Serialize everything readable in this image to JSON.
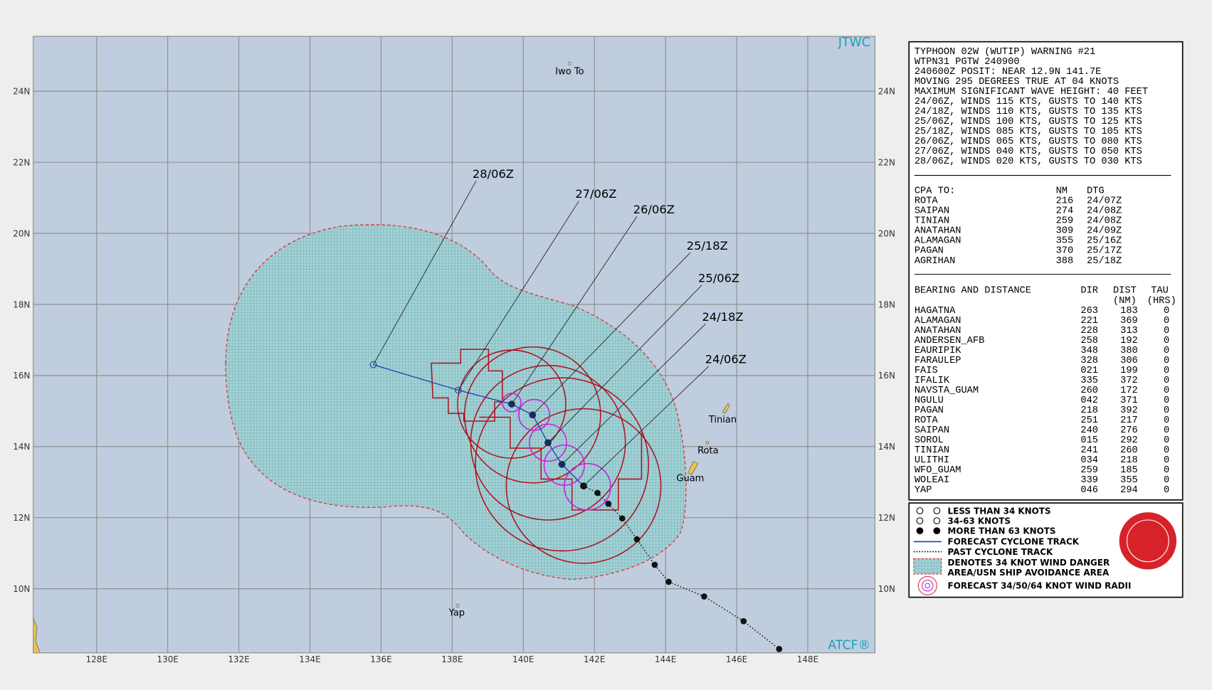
{
  "map": {
    "source_top": "JTWC",
    "source_bottom": "ATCF®",
    "lon_ticks": [
      "128E",
      "130E",
      "132E",
      "134E",
      "136E",
      "138E",
      "140E",
      "142E",
      "144E",
      "146E",
      "148E"
    ],
    "lat_ticks": [
      "24N",
      "22N",
      "20N",
      "18N",
      "16N",
      "14N",
      "12N",
      "10N"
    ],
    "places": [
      "Iwo To",
      "Tinian",
      "Rota",
      "Guam",
      "Yap"
    ],
    "forecast_labels": [
      "28/06Z",
      "27/06Z",
      "26/06Z",
      "25/18Z",
      "25/06Z",
      "24/18Z",
      "24/06Z"
    ]
  },
  "warning": {
    "lines": [
      "TYPHOON 02W (WUTIP) WARNING #21",
      "WTPN31 PGTW 240900",
      "240600Z POSIT: NEAR 12.9N 141.7E",
      "MOVING 295 DEGREES TRUE AT 04 KNOTS",
      "MAXIMUM SIGNIFICANT WAVE HEIGHT: 40 FEET",
      "24/06Z, WINDS 115 KTS, GUSTS TO 140 KTS",
      "24/18Z, WINDS 110 KTS, GUSTS TO 135 KTS",
      "25/06Z, WINDS 100 KTS, GUSTS TO 125 KTS",
      "25/18Z, WINDS 085 KTS, GUSTS TO 105 KTS",
      "26/06Z, WINDS 065 KTS, GUSTS TO 080 KTS",
      "27/06Z, WINDS 040 KTS, GUSTS TO 050 KTS",
      "28/06Z, WINDS 020 KTS, GUSTS TO 030 KTS"
    ]
  },
  "cpa": {
    "header": [
      "CPA TO:",
      "NM",
      "DTG"
    ],
    "rows": [
      [
        "ROTA",
        "216",
        "24/07Z"
      ],
      [
        "SAIPAN",
        "274",
        "24/08Z"
      ],
      [
        "TINIAN",
        "259",
        "24/08Z"
      ],
      [
        "ANATAHAN",
        "309",
        "24/09Z"
      ],
      [
        "ALAMAGAN",
        "355",
        "25/16Z"
      ],
      [
        "PAGAN",
        "370",
        "25/17Z"
      ],
      [
        "AGRIHAN",
        "388",
        "25/18Z"
      ]
    ]
  },
  "bearing": {
    "header": [
      "BEARING AND DISTANCE",
      "DIR",
      "DIST",
      "TAU"
    ],
    "subheader": [
      "(NM)",
      "(HRS)"
    ],
    "rows": [
      [
        "HAGATNA",
        "263",
        "183",
        "0"
      ],
      [
        "ALAMAGAN",
        "221",
        "369",
        "0"
      ],
      [
        "ANATAHAN",
        "228",
        "313",
        "0"
      ],
      [
        "ANDERSEN_AFB",
        "258",
        "192",
        "0"
      ],
      [
        "EAURIPIK",
        "348",
        "380",
        "0"
      ],
      [
        "FARAULEP",
        "328",
        "306",
        "0"
      ],
      [
        "FAIS",
        "021",
        "199",
        "0"
      ],
      [
        "IFALIK",
        "335",
        "372",
        "0"
      ],
      [
        "NAVSTA_GUAM",
        "260",
        "172",
        "0"
      ],
      [
        "NGULU",
        "042",
        "371",
        "0"
      ],
      [
        "PAGAN",
        "218",
        "392",
        "0"
      ],
      [
        "ROTA",
        "251",
        "217",
        "0"
      ],
      [
        "SAIPAN",
        "240",
        "276",
        "0"
      ],
      [
        "SOROL",
        "015",
        "292",
        "0"
      ],
      [
        "TINIAN",
        "241",
        "260",
        "0"
      ],
      [
        "ULITHI",
        "034",
        "218",
        "0"
      ],
      [
        "WFO_GUAM",
        "259",
        "185",
        "0"
      ],
      [
        "WOLEAI",
        "339",
        "355",
        "0"
      ],
      [
        "YAP",
        "046",
        "294",
        "0"
      ]
    ]
  },
  "legend": {
    "items": [
      "LESS THAN 34 KNOTS",
      "34-63 KNOTS",
      "MORE THAN 63 KNOTS",
      "FORECAST CYCLONE TRACK",
      "PAST CYCLONE TRACK",
      "DENOTES 34 KNOT WIND DANGER",
      "AREA/USN SHIP AVOIDANCE AREA",
      "FORECAST 34/50/64 KNOT WIND RADII"
    ]
  }
}
